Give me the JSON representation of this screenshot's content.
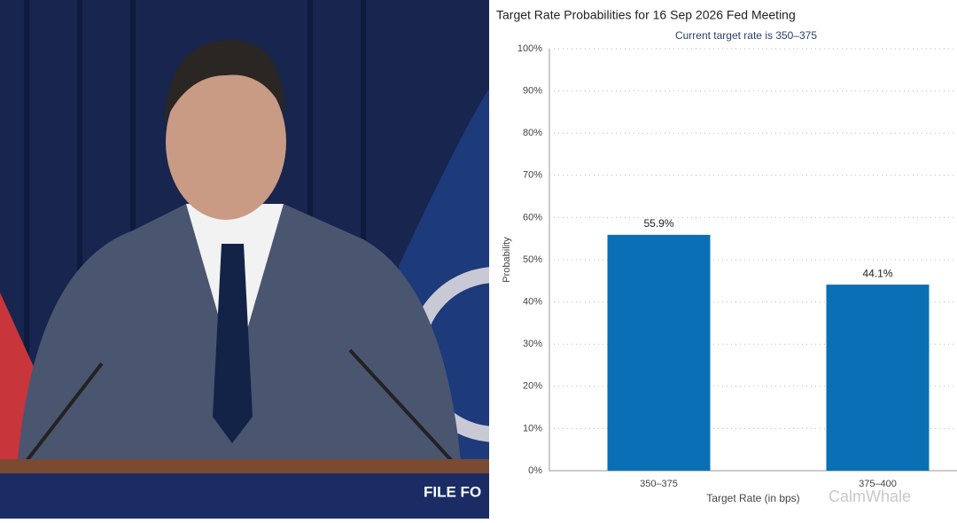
{
  "photo": {
    "podium_text": "FILE FO"
  },
  "watermark": "CalmWhale",
  "chart_data": {
    "type": "bar",
    "title": "Target Rate Probabilities for 16 Sep 2026 Fed Meeting",
    "subtitle": "Current target rate is 350–375",
    "x_label": "Target Rate (in bps)",
    "y_label": "Probability",
    "categories": [
      "350–375",
      "375–400"
    ],
    "values": [
      55.9,
      44.1
    ],
    "value_labels": [
      "55.9%",
      "44.1%"
    ],
    "color": "#0b6fb5",
    "ylim": [
      0,
      100
    ],
    "yticks": [
      {
        "value": 0,
        "label": "0%"
      },
      {
        "value": 10,
        "label": "10%"
      },
      {
        "value": 20,
        "label": "20%"
      },
      {
        "value": 30,
        "label": "30%"
      },
      {
        "value": 40,
        "label": "40%"
      },
      {
        "value": 50,
        "label": "50%"
      },
      {
        "value": 60,
        "label": "60%"
      },
      {
        "value": 70,
        "label": "70%"
      },
      {
        "value": 80,
        "label": "80%"
      },
      {
        "value": 90,
        "label": "90%"
      },
      {
        "value": 100,
        "label": "100%"
      }
    ],
    "grid": true
  }
}
